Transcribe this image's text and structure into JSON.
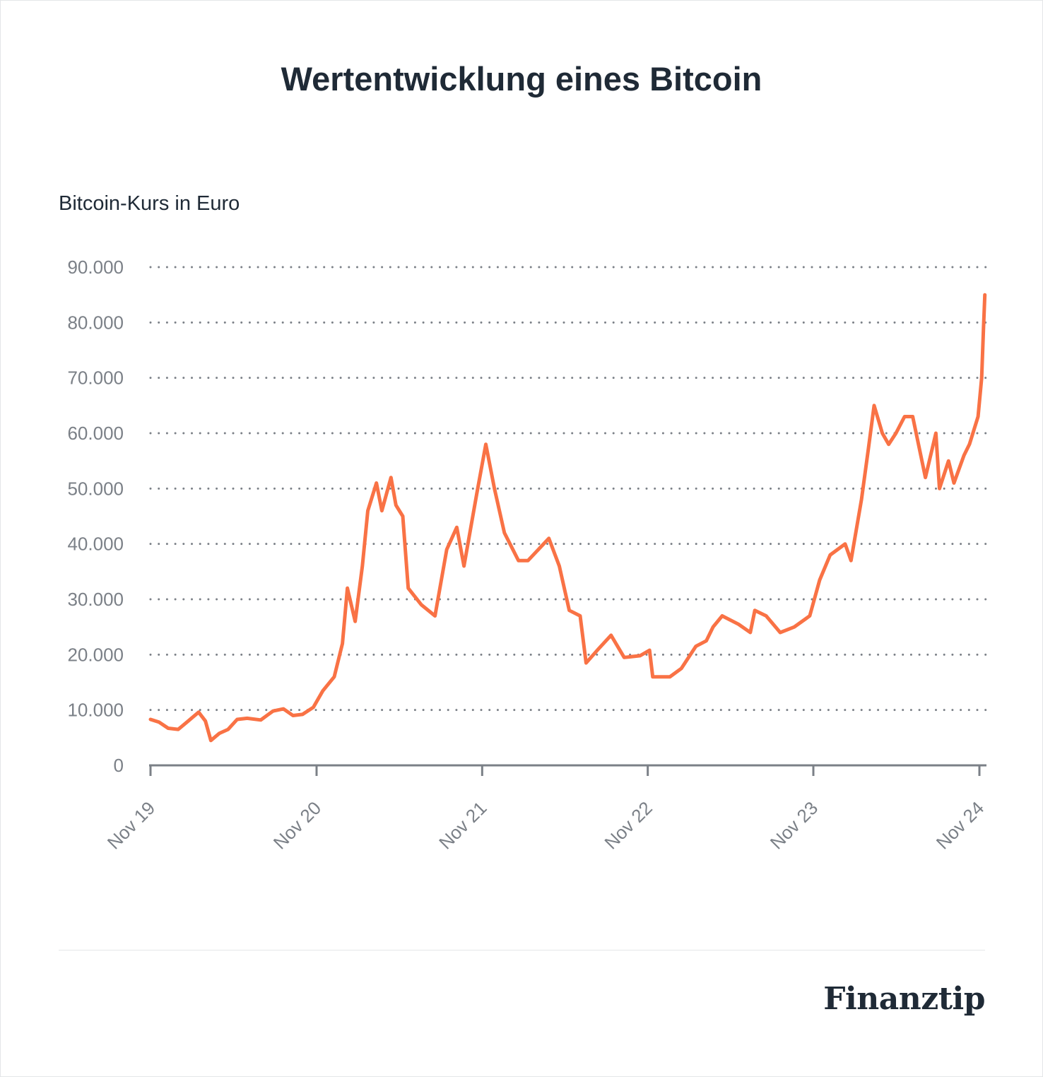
{
  "title": "Wertentwicklung eines Bitcoin",
  "logo": "Finanztip",
  "colors": {
    "line": "#F97245",
    "grid": "#7b8087",
    "axis": "#7b8087",
    "text": "#1f2a36"
  },
  "chart_data": {
    "type": "line",
    "title": "Wertentwicklung eines Bitcoin",
    "ylabel": "Bitcoin-Kurs in Euro",
    "xlabel": "",
    "ylim": [
      0,
      90000
    ],
    "yticks": [
      0,
      10000,
      20000,
      30000,
      40000,
      50000,
      60000,
      70000,
      80000,
      90000
    ],
    "ytick_labels": [
      "0",
      "10.000",
      "20.000",
      "30.000",
      "40.000",
      "50.000",
      "60.000",
      "70.000",
      "80.000",
      "90.000"
    ],
    "xticks": [
      "2019-11-01",
      "2020-11-01",
      "2021-11-01",
      "2022-11-01",
      "2023-11-01",
      "2024-11-01"
    ],
    "xtick_labels": [
      "Nov 19",
      "Nov 20",
      "Nov 21",
      "Nov 22",
      "Nov 23",
      "Nov 24"
    ],
    "grid": "horizontal-dotted",
    "legend": "none",
    "series": [
      {
        "x": [
          "2019-11-01",
          "2019-11-20",
          "2019-12-10",
          "2020-01-01",
          "2020-01-20",
          "2020-02-15",
          "2020-03-01",
          "2020-03-13",
          "2020-04-01",
          "2020-04-20",
          "2020-05-10",
          "2020-06-01",
          "2020-07-01",
          "2020-07-28",
          "2020-08-20",
          "2020-09-10",
          "2020-10-01",
          "2020-10-25",
          "2020-11-15",
          "2020-12-10",
          "2020-12-28",
          "2021-01-08",
          "2021-01-25",
          "2021-02-10",
          "2021-02-22",
          "2021-03-13",
          "2021-03-25",
          "2021-04-14",
          "2021-04-25",
          "2021-05-10",
          "2021-05-22",
          "2021-06-20",
          "2021-07-20",
          "2021-08-15",
          "2021-09-06",
          "2021-09-22",
          "2021-10-20",
          "2021-11-09",
          "2021-11-28",
          "2021-12-20",
          "2022-01-20",
          "2022-02-10",
          "2022-03-28",
          "2022-04-20",
          "2022-05-12",
          "2022-06-05",
          "2022-06-18",
          "2022-07-15",
          "2022-08-12",
          "2022-09-10",
          "2022-10-15",
          "2022-11-05",
          "2022-11-12",
          "2022-12-20",
          "2023-01-14",
          "2023-02-15",
          "2023-03-10",
          "2023-03-25",
          "2023-04-14",
          "2023-05-20",
          "2023-06-15",
          "2023-06-25",
          "2023-07-20",
          "2023-08-20",
          "2023-09-20",
          "2023-10-24",
          "2023-11-15",
          "2023-12-08",
          "2024-01-10",
          "2024-01-23",
          "2024-02-15",
          "2024-03-01",
          "2024-03-14",
          "2024-04-01",
          "2024-04-15",
          "2024-05-01",
          "2024-05-20",
          "2024-06-07",
          "2024-07-05",
          "2024-07-28",
          "2024-08-05",
          "2024-08-25",
          "2024-09-06",
          "2024-09-28",
          "2024-10-10",
          "2024-10-29",
          "2024-11-06",
          "2024-11-10",
          "2024-11-13"
        ],
        "y": [
          8300,
          7800,
          6700,
          6500,
          7800,
          9600,
          8000,
          4500,
          5800,
          6500,
          8300,
          8500,
          8200,
          9800,
          10200,
          9000,
          9200,
          10500,
          13500,
          16000,
          22000,
          32000,
          26000,
          36000,
          46000,
          51000,
          46000,
          52000,
          47000,
          45000,
          32000,
          29000,
          27000,
          39000,
          43000,
          36000,
          49000,
          58000,
          50000,
          42000,
          37000,
          37000,
          41000,
          36000,
          28000,
          27000,
          18500,
          21000,
          23500,
          19500,
          19800,
          20800,
          16000,
          16000,
          17500,
          21500,
          22500,
          25000,
          27000,
          25500,
          24000,
          28000,
          27000,
          24000,
          25000,
          27000,
          33500,
          38000,
          40000,
          37000,
          48000,
          57000,
          65000,
          60000,
          58000,
          60000,
          63000,
          63000,
          52000,
          60000,
          50000,
          55000,
          51000,
          56000,
          58000,
          63000,
          70000,
          79000,
          85000
        ]
      }
    ]
  }
}
